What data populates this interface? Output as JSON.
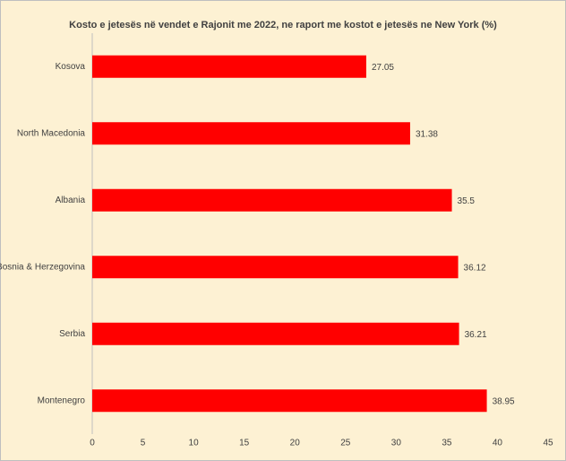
{
  "chart_data": {
    "type": "bar",
    "orientation": "horizontal",
    "title": "Kosto e jetesës në vendet e Rajonit me 2022, ne raport me kostot e jetesës ne New York (%)",
    "categories": [
      "Kosova",
      "North Macedonia",
      "Albania",
      "Bosnia & Herzegovina",
      "Serbia",
      "Montenegro"
    ],
    "values": [
      27.05,
      31.38,
      35.5,
      36.12,
      36.21,
      38.95
    ],
    "color": "#ff0000",
    "xlim": [
      0,
      45
    ],
    "xticks": [
      0,
      5,
      10,
      15,
      20,
      25,
      30,
      35,
      40,
      45
    ],
    "grid": false
  }
}
